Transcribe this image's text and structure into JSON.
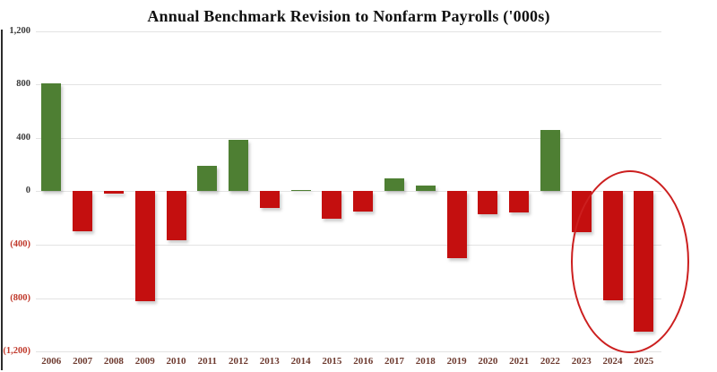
{
  "chart_data": {
    "type": "bar",
    "title": "Annual Benchmark Revision to Nonfarm Payrolls ('000s)",
    "categories": [
      "2006",
      "2007",
      "2008",
      "2009",
      "2010",
      "2011",
      "2012",
      "2013",
      "2014",
      "2015",
      "2016",
      "2017",
      "2018",
      "2019",
      "2020",
      "2021",
      "2022",
      "2023",
      "2024",
      "2025"
    ],
    "values": [
      810,
      -297,
      -21,
      -824,
      -366,
      192,
      386,
      -124,
      7,
      -208,
      -150,
      95,
      43,
      -501,
      -173,
      -161,
      462,
      -306,
      -818,
      -1050
    ],
    "xlabel": "",
    "ylabel": "",
    "ylim": [
      -1200,
      1200
    ],
    "y_ticks": [
      1200,
      800,
      400,
      0,
      -400,
      -800,
      -1200
    ],
    "y_tick_labels": [
      "1,200",
      "800",
      "400",
      "0",
      "(400)",
      "(800)",
      "(1,200)"
    ],
    "grid": true,
    "legend": false,
    "annotation": {
      "shape": "ellipse",
      "highlighted_categories": [
        "2024",
        "2025"
      ],
      "meaning": "circles the 2024 and 2025 downward revisions"
    }
  },
  "colors": {
    "positive_bar": "#4e7f33",
    "negative_bar": "#c40f0f",
    "grid_line": "#e3e3e3",
    "y_label_positive": "#3a3a3a",
    "y_label_negative": "#c0392b",
    "x_label": "#6e3b30",
    "title_color": "#111111",
    "ellipse_stroke": "#cc1f1f",
    "background": "#ffffff"
  }
}
